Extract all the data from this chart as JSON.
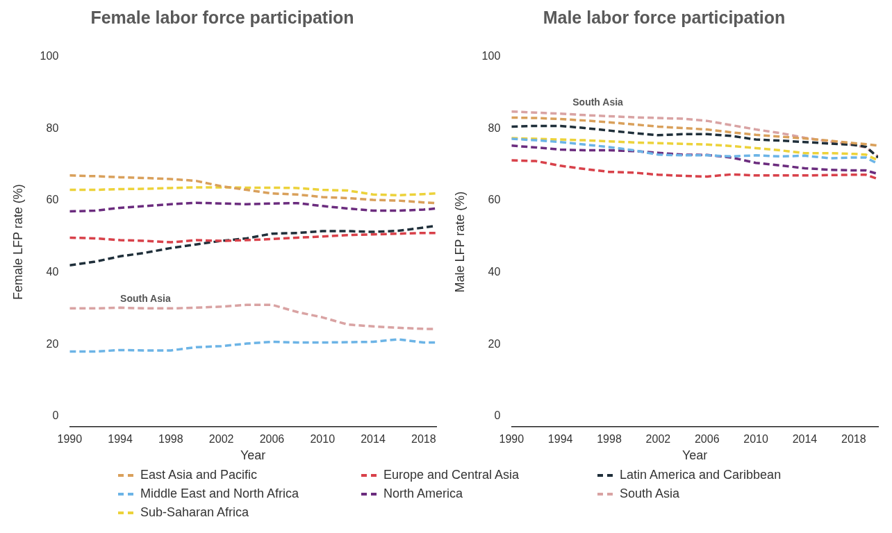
{
  "chart_data": [
    {
      "type": "line",
      "title": "Female labor force participation",
      "xlabel": "Year",
      "ylabel": "Female LFP rate (%)",
      "x": [
        1990,
        1992,
        1994,
        1996,
        1998,
        2000,
        2002,
        2004,
        2006,
        2008,
        2010,
        2012,
        2014,
        2016,
        2018,
        2019
      ],
      "xlim": [
        1990,
        2019
      ],
      "xticks": [
        1990,
        1994,
        1998,
        2002,
        2006,
        2010,
        2014,
        2018
      ],
      "ylim": [
        -3,
        100
      ],
      "yticks": [
        0,
        20,
        40,
        60,
        80,
        100
      ],
      "grid": false,
      "legend": "bottom",
      "marker": "none",
      "line_style": "dashed",
      "series": [
        {
          "name": "East Asia and Pacific",
          "color": "#d9a05b",
          "values": [
            67,
            66.8,
            66.5,
            66.3,
            66,
            65.5,
            64,
            63,
            62,
            61.7,
            61,
            60.7,
            60.2,
            60,
            59.5,
            59.3
          ]
        },
        {
          "name": "Europe and Central Asia",
          "color": "#d8414a",
          "values": [
            49.7,
            49.5,
            49,
            48.8,
            48.4,
            49,
            48.8,
            49,
            49.3,
            49.7,
            50,
            50.4,
            50.6,
            50.8,
            51,
            51
          ]
        },
        {
          "name": "Latin America and Caribbean",
          "color": "#1f2f3a",
          "values": [
            42,
            43,
            44.5,
            45.5,
            46.8,
            47.8,
            48.8,
            49.5,
            50.8,
            51,
            51.5,
            51.5,
            51.3,
            51.6,
            52.5,
            53
          ]
        },
        {
          "name": "Middle East and North Africa",
          "color": "#6cb4e6",
          "values": [
            18,
            18,
            18.4,
            18.3,
            18.3,
            19.2,
            19.5,
            20.2,
            20.7,
            20.5,
            20.5,
            20.6,
            20.7,
            21.4,
            20.5,
            20.5
          ]
        },
        {
          "name": "North America",
          "color": "#6b2c7e",
          "values": [
            57,
            57.2,
            58,
            58.5,
            59,
            59.4,
            59.2,
            59,
            59.2,
            59.3,
            58.5,
            57.8,
            57.2,
            57.2,
            57.5,
            57.8
          ]
        },
        {
          "name": "South Asia",
          "color": "#d9a3a3",
          "values": [
            30,
            30,
            30.2,
            30,
            30,
            30.2,
            30.5,
            31,
            31,
            29,
            27.5,
            25.5,
            25,
            24.6,
            24.3,
            24.3
          ]
        },
        {
          "name": "Sub-Saharan Africa",
          "color": "#ecd23a",
          "values": [
            63,
            63,
            63.2,
            63.3,
            63.5,
            63.7,
            63.7,
            63.6,
            63.6,
            63.5,
            63,
            62.8,
            61.7,
            61.5,
            61.8,
            62
          ]
        }
      ],
      "annotations": [
        {
          "text": "South Asia",
          "x": 1994,
          "y": 30
        }
      ]
    },
    {
      "type": "line",
      "title": "Male labor force participation",
      "xlabel": "Year",
      "ylabel": "Male LFP rate (%)",
      "x": [
        1990,
        1992,
        1994,
        1996,
        1998,
        2000,
        2002,
        2004,
        2006,
        2008,
        2010,
        2012,
        2014,
        2016,
        2018,
        2019,
        2020
      ],
      "xlim": [
        1990,
        2020
      ],
      "xticks": [
        1990,
        1994,
        1998,
        2002,
        2006,
        2010,
        2014,
        2018
      ],
      "ylim": [
        -3,
        100
      ],
      "yticks": [
        0,
        20,
        40,
        60,
        80,
        100
      ],
      "grid": false,
      "marker": "none",
      "line_style": "dashed",
      "series": [
        {
          "color": "#d9a05b",
          "values": [
            83.1,
            83,
            82.7,
            82.3,
            81.8,
            81.2,
            80.6,
            80.2,
            79.8,
            79,
            78.3,
            77.8,
            77.3,
            76.7,
            76,
            75.7,
            75.3
          ]
        },
        {
          "color": "#d8414a",
          "values": [
            71.2,
            71,
            69.7,
            68.8,
            68,
            67.8,
            67.2,
            66.9,
            66.7,
            67.3,
            67,
            67,
            67,
            67.1,
            67.2,
            67.2,
            66
          ]
        },
        {
          "color": "#1f2f3a",
          "values": [
            80.6,
            80.8,
            80.8,
            80.2,
            79.5,
            78.8,
            78.2,
            78.5,
            78.5,
            78,
            77,
            76.7,
            76.3,
            75.9,
            75.5,
            75,
            72
          ]
        },
        {
          "color": "#6cb4e6",
          "values": [
            77.2,
            76.8,
            76.3,
            75.6,
            74.9,
            74,
            72.8,
            72.6,
            72.6,
            72.3,
            72.6,
            72.3,
            72.5,
            71.8,
            72,
            72,
            70.2
          ]
        },
        {
          "color": "#6b2c7e",
          "values": [
            75.3,
            74.8,
            74.2,
            74,
            74,
            73.8,
            73.3,
            72.8,
            72.7,
            72,
            70.5,
            69.8,
            69,
            68.6,
            68.4,
            68.4,
            67.4
          ]
        },
        {
          "color": "#d9a3a3",
          "values": [
            84.8,
            84.5,
            84.2,
            83.8,
            83.5,
            83.2,
            83,
            82.8,
            82.2,
            81,
            79.8,
            78.8,
            77.5,
            76.5,
            75.5,
            74.8,
            72.3
          ]
        },
        {
          "color": "#ecd23a",
          "values": [
            77.4,
            77.2,
            77,
            76.8,
            76.5,
            76.2,
            76,
            75.8,
            75.6,
            75.2,
            74.6,
            74,
            73.2,
            73.2,
            73,
            72.8,
            71.2
          ]
        }
      ],
      "annotations": [
        {
          "text": "South Asia",
          "x": 1995,
          "y": 84.8
        }
      ]
    }
  ]
}
